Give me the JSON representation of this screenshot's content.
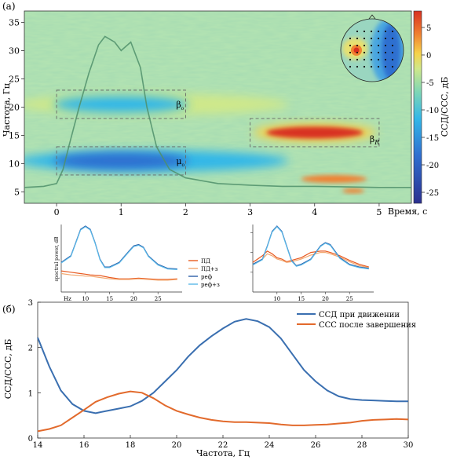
{
  "panel_a_label": "(a)",
  "panel_b_label": "(б)",
  "chart_data": [
    {
      "type": "heatmap",
      "title": "",
      "xlabel": "Время, с",
      "ylabel": "Частота, Гц",
      "xlim": [
        -0.5,
        5.5
      ],
      "ylim": [
        3,
        37
      ],
      "xticks": [
        0,
        1,
        2,
        3,
        4,
        5
      ],
      "yticks": [
        5,
        10,
        15,
        20,
        25,
        30,
        35
      ],
      "colorbar": {
        "label": "ССД/ССС, дБ",
        "ticks": [
          5,
          0,
          -5,
          -10,
          -15,
          -20,
          -25
        ],
        "range": [
          -27,
          8
        ],
        "colors": [
          "#2b2f8f",
          "#2f6fd0",
          "#33b7e8",
          "#7fd6b5",
          "#cfe88a",
          "#f6d24a",
          "#f08030",
          "#d83020"
        ]
      },
      "regions": [
        {
          "label": "β₀",
          "t_from": 0,
          "t_to": 2,
          "f_from": 18,
          "f_to": 23,
          "value_db": -14
        },
        {
          "label": "μ₀",
          "t_from": 0,
          "t_to": 2,
          "f_from": 8,
          "f_to": 13,
          "value_db": -24
        },
        {
          "label": "β_R",
          "t_from": 3,
          "t_to": 5,
          "f_from": 13,
          "f_to": 18,
          "value_db": 6
        }
      ],
      "overlay_series": {
        "x": [
          -0.5,
          -0.2,
          0.0,
          0.1,
          0.2,
          0.35,
          0.5,
          0.65,
          0.75,
          0.9,
          1.0,
          1.15,
          1.3,
          1.4,
          1.55,
          1.75,
          2.0,
          2.5,
          3.0,
          3.5,
          4.0,
          4.5,
          5.0,
          5.5
        ],
        "y": [
          5.8,
          6.0,
          6.5,
          9.0,
          13.5,
          20.0,
          26.0,
          31.0,
          32.5,
          31.5,
          30.0,
          31.5,
          27.0,
          20.0,
          13.0,
          9.0,
          7.5,
          6.5,
          6.2,
          6.0,
          6.0,
          5.9,
          5.8,
          5.8
        ]
      },
      "inset": "topomap"
    },
    {
      "type": "line",
      "title": "",
      "xlabel": "Hz",
      "ylabel": "spectral power, dB",
      "xticks": [
        10,
        15,
        20,
        25
      ],
      "xlim": [
        5,
        30
      ],
      "ylim": [
        0,
        1
      ],
      "series": [
        {
          "name": "ПД",
          "color": "#e85a20",
          "x": [
            5,
            7,
            9,
            10,
            11,
            13,
            15,
            17,
            19,
            21,
            23,
            25,
            27,
            29
          ],
          "y": [
            0.32,
            0.3,
            0.28,
            0.27,
            0.26,
            0.25,
            0.22,
            0.2,
            0.2,
            0.21,
            0.2,
            0.19,
            0.19,
            0.2
          ]
        },
        {
          "name": "ПД+з",
          "color": "#f2a870",
          "x": [
            5,
            7,
            9,
            10,
            11,
            13,
            15,
            17,
            19,
            21,
            23,
            25,
            27,
            29
          ],
          "y": [
            0.28,
            0.26,
            0.25,
            0.24,
            0.24,
            0.22,
            0.2,
            0.19,
            0.19,
            0.2,
            0.19,
            0.18,
            0.18,
            0.19
          ]
        },
        {
          "name": "реф",
          "color": "#2d5fa8",
          "x": [
            5,
            7,
            8,
            9,
            10,
            11,
            12,
            13,
            14,
            15,
            17,
            19,
            20,
            21,
            22,
            23,
            25,
            27,
            29
          ],
          "y": [
            0.45,
            0.55,
            0.75,
            0.95,
            1.0,
            0.95,
            0.75,
            0.5,
            0.38,
            0.38,
            0.45,
            0.62,
            0.7,
            0.72,
            0.68,
            0.55,
            0.42,
            0.36,
            0.35
          ]
        },
        {
          "name": "реф+з",
          "color": "#5ab8e8",
          "x": [
            5,
            7,
            8,
            9,
            10,
            11,
            12,
            13,
            14,
            15,
            17,
            19,
            20,
            21,
            22,
            23,
            25,
            27,
            29
          ],
          "y": [
            0.44,
            0.54,
            0.74,
            0.94,
            0.99,
            0.94,
            0.74,
            0.49,
            0.37,
            0.37,
            0.44,
            0.61,
            0.69,
            0.71,
            0.67,
            0.54,
            0.41,
            0.35,
            0.34
          ]
        }
      ]
    },
    {
      "type": "line",
      "title": "",
      "xlabel": "",
      "ylabel": "",
      "xticks": [
        10,
        15,
        20,
        25
      ],
      "xlim": [
        5,
        30
      ],
      "ylim": [
        0,
        1
      ],
      "series": [
        {
          "name": "ПД",
          "color": "#e85a20",
          "x": [
            5,
            7,
            8,
            9,
            10,
            11,
            12,
            13,
            15,
            17,
            19,
            20,
            21,
            23,
            25,
            27,
            29
          ],
          "y": [
            0.45,
            0.55,
            0.62,
            0.58,
            0.52,
            0.5,
            0.46,
            0.48,
            0.52,
            0.6,
            0.62,
            0.62,
            0.6,
            0.55,
            0.48,
            0.42,
            0.38
          ]
        },
        {
          "name": "ПД+з",
          "color": "#f2a870",
          "x": [
            5,
            7,
            8,
            9,
            10,
            11,
            12,
            13,
            15,
            17,
            19,
            20,
            21,
            23,
            25,
            27,
            29
          ],
          "y": [
            0.42,
            0.5,
            0.58,
            0.55,
            0.5,
            0.48,
            0.45,
            0.46,
            0.5,
            0.56,
            0.6,
            0.6,
            0.58,
            0.53,
            0.46,
            0.4,
            0.37
          ]
        },
        {
          "name": "реф",
          "color": "#2d5fa8",
          "x": [
            5,
            7,
            8,
            9,
            10,
            11,
            12,
            13,
            14,
            15,
            17,
            19,
            20,
            21,
            22,
            23,
            25,
            27,
            29
          ],
          "y": [
            0.42,
            0.5,
            0.7,
            0.92,
            1.0,
            0.92,
            0.7,
            0.48,
            0.4,
            0.42,
            0.5,
            0.7,
            0.75,
            0.72,
            0.62,
            0.52,
            0.42,
            0.38,
            0.36
          ]
        },
        {
          "name": "реф+з",
          "color": "#5ab8e8",
          "x": [
            5,
            7,
            8,
            9,
            10,
            11,
            12,
            13,
            14,
            15,
            17,
            19,
            20,
            21,
            22,
            23,
            25,
            27,
            29
          ],
          "y": [
            0.41,
            0.49,
            0.69,
            0.91,
            0.99,
            0.91,
            0.69,
            0.47,
            0.39,
            0.41,
            0.49,
            0.69,
            0.74,
            0.71,
            0.61,
            0.51,
            0.41,
            0.37,
            0.35
          ]
        }
      ]
    },
    {
      "type": "line",
      "title": "",
      "xlabel": "Частота, Гц",
      "ylabel": "ССД/ССС, дБ",
      "xlim": [
        14,
        30
      ],
      "ylim": [
        0,
        3
      ],
      "xticks": [
        14,
        16,
        18,
        20,
        22,
        24,
        26,
        28,
        30
      ],
      "yticks": [
        0,
        1,
        2,
        3
      ],
      "legend_position": "top-right",
      "series": [
        {
          "name": "ССД при движении",
          "color": "#3a6fb0",
          "x": [
            14,
            14.5,
            15,
            15.5,
            16,
            16.5,
            17,
            17.5,
            18,
            18.5,
            19,
            19.5,
            20,
            20.5,
            21,
            21.5,
            22,
            22.5,
            23,
            23.5,
            24,
            24.5,
            25,
            25.5,
            26,
            26.5,
            27,
            27.5,
            28,
            28.5,
            29,
            29.5,
            30
          ],
          "y": [
            2.22,
            1.58,
            1.05,
            0.75,
            0.6,
            0.55,
            0.6,
            0.65,
            0.7,
            0.82,
            1.0,
            1.25,
            1.5,
            1.8,
            2.05,
            2.25,
            2.42,
            2.57,
            2.63,
            2.58,
            2.45,
            2.2,
            1.85,
            1.5,
            1.25,
            1.05,
            0.92,
            0.86,
            0.84,
            0.83,
            0.82,
            0.81,
            0.81
          ]
        },
        {
          "name": "ССС после завершения",
          "color": "#e26a2c",
          "x": [
            14,
            14.5,
            15,
            15.5,
            16,
            16.5,
            17,
            17.5,
            18,
            18.5,
            19,
            19.5,
            20,
            20.5,
            21,
            21.5,
            22,
            22.5,
            23,
            23.5,
            24,
            24.5,
            25,
            25.5,
            26,
            26.5,
            27,
            27.5,
            28,
            28.5,
            29,
            29.5,
            30
          ],
          "y": [
            0.15,
            0.2,
            0.28,
            0.45,
            0.62,
            0.8,
            0.9,
            0.98,
            1.03,
            1.0,
            0.88,
            0.72,
            0.6,
            0.52,
            0.45,
            0.4,
            0.37,
            0.35,
            0.35,
            0.34,
            0.33,
            0.3,
            0.28,
            0.28,
            0.29,
            0.3,
            0.32,
            0.34,
            0.38,
            0.4,
            0.41,
            0.42,
            0.41
          ]
        }
      ]
    }
  ]
}
